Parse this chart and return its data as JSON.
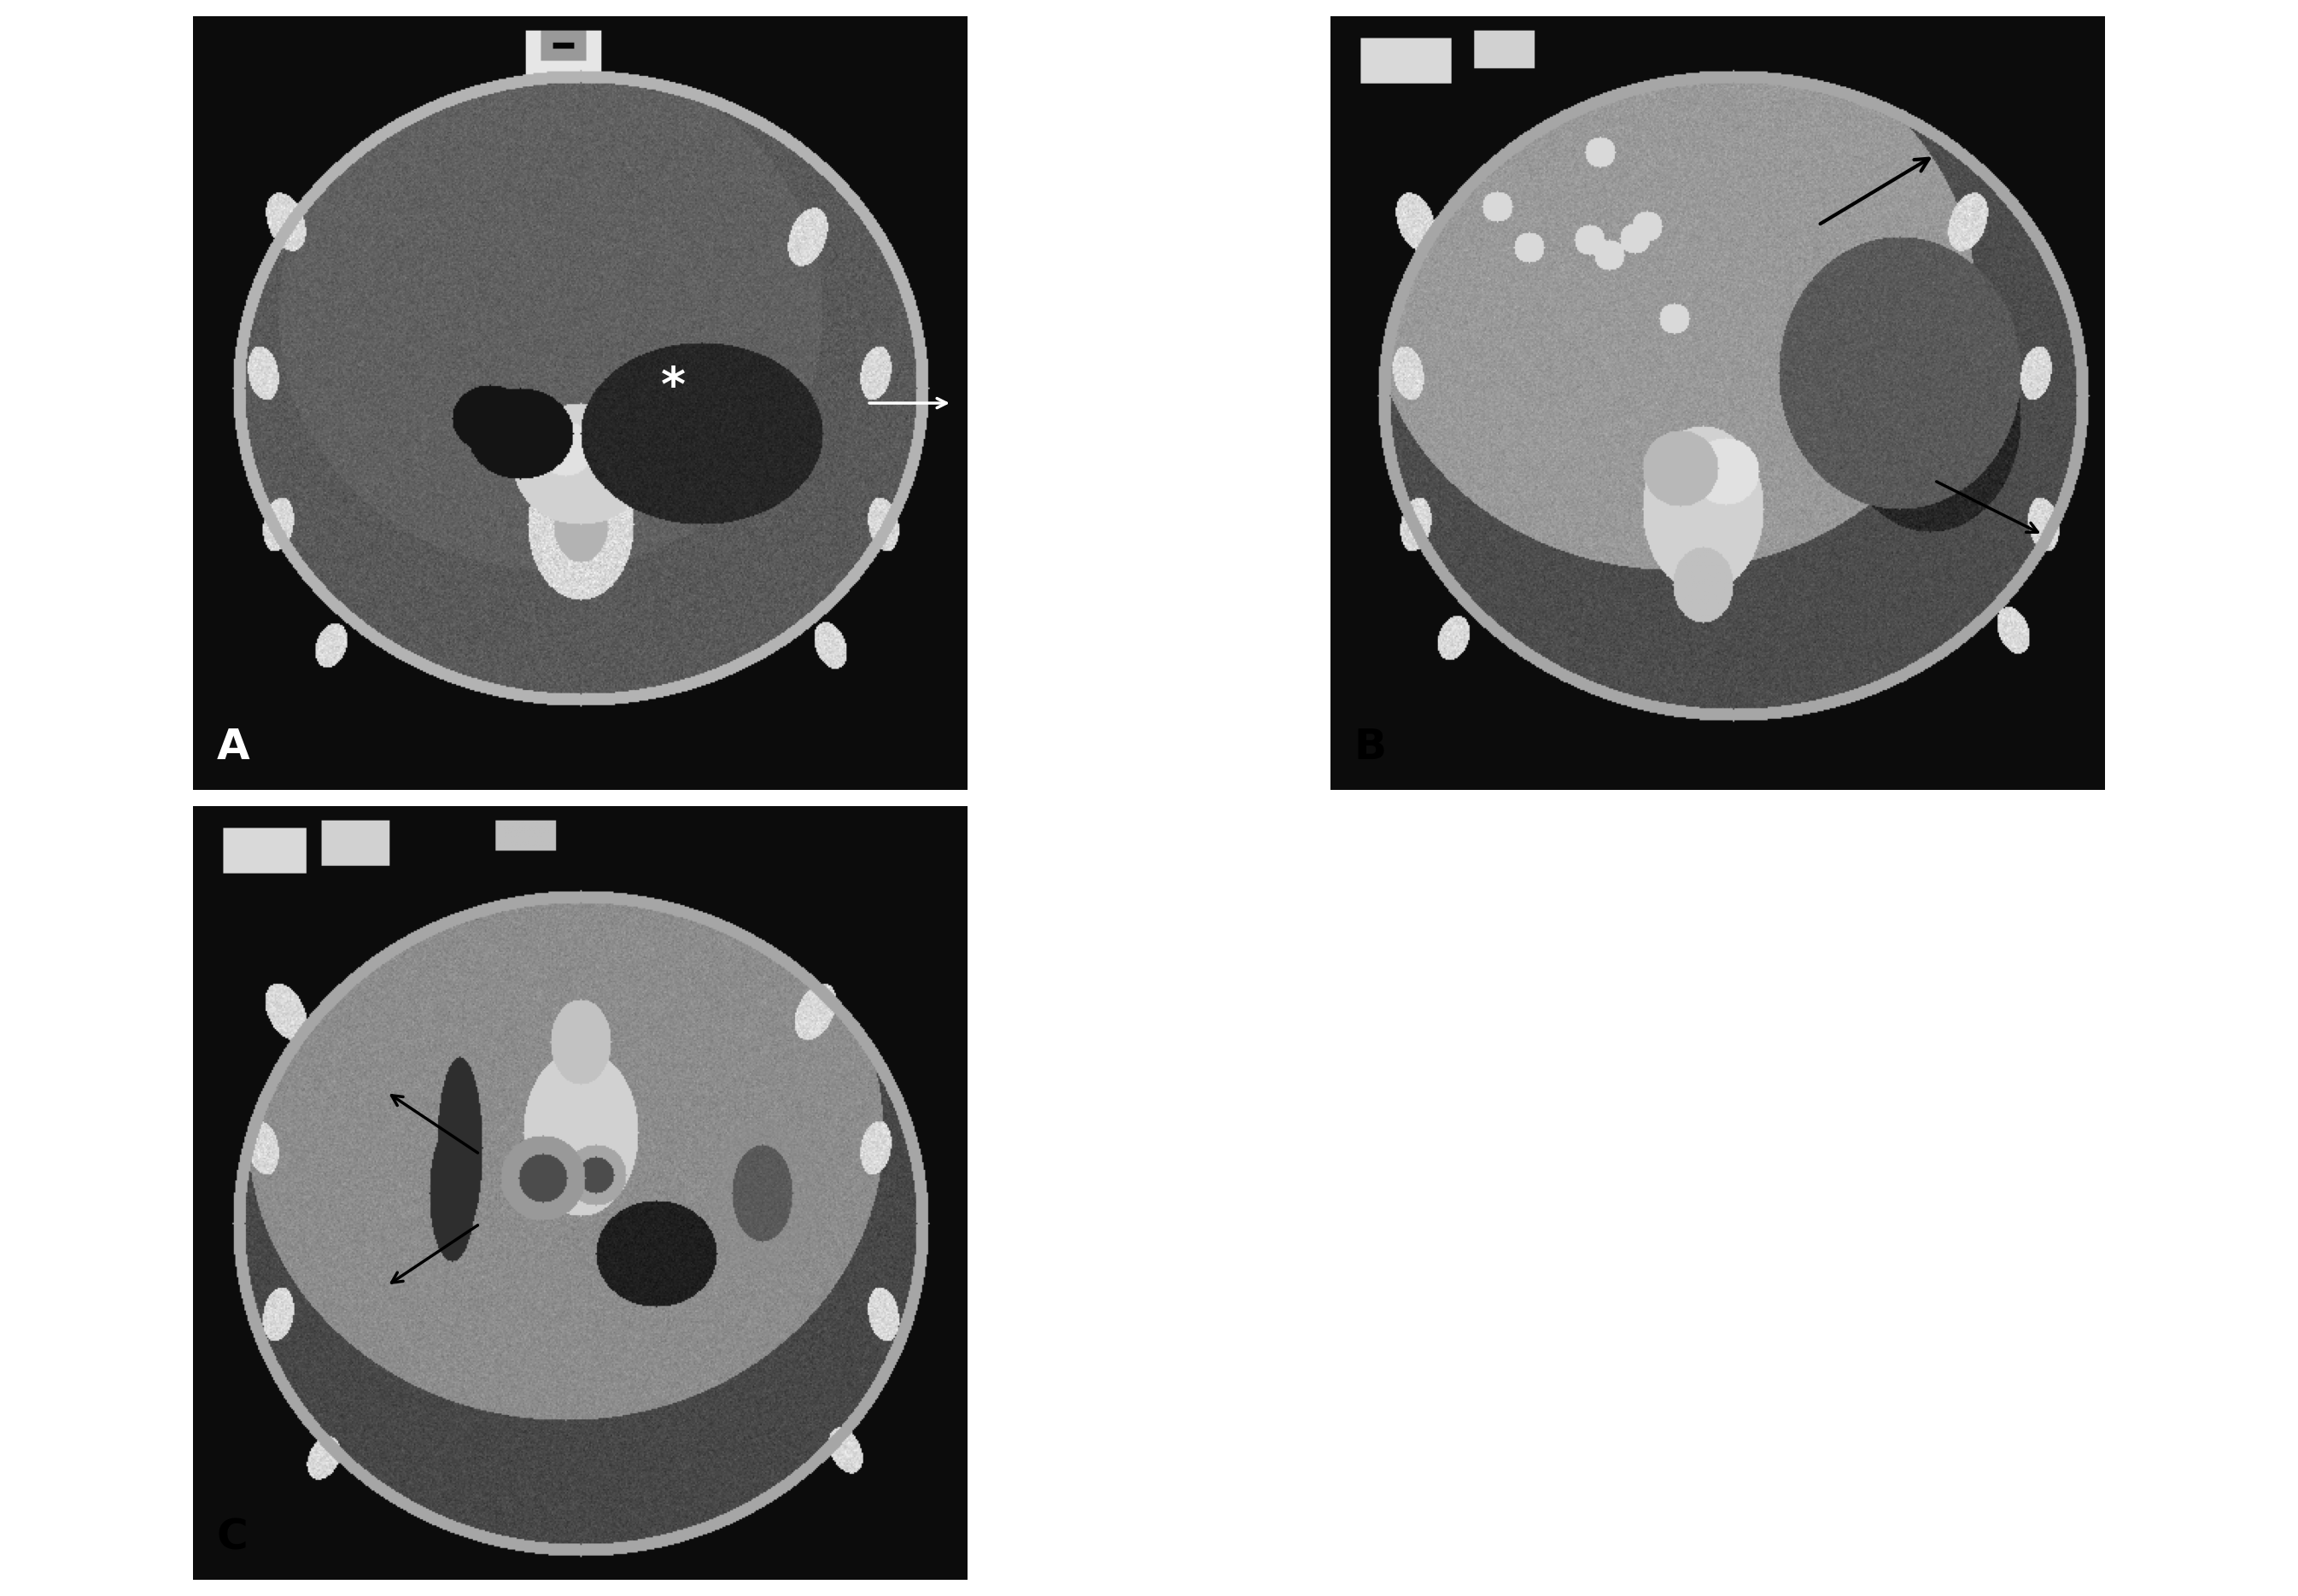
{
  "figure_width": 26.91,
  "figure_height": 18.69,
  "background_color": "#ffffff",
  "panel_bg": "#000000",
  "label_color_A": "#ffffff",
  "label_color_B": "#000000",
  "label_color_C": "#000000",
  "label_fontsize": 36,
  "panels": [
    "A",
    "B",
    "C"
  ],
  "grid_rows": 2,
  "grid_cols": 2,
  "panel_positions": {
    "A": [
      0,
      1,
      0,
      1
    ],
    "B": [
      0,
      1,
      1,
      2
    ],
    "C": [
      1,
      2,
      0,
      1
    ]
  },
  "ct_noise_seed": 42,
  "border_color": "#888888",
  "border_lw": 2
}
